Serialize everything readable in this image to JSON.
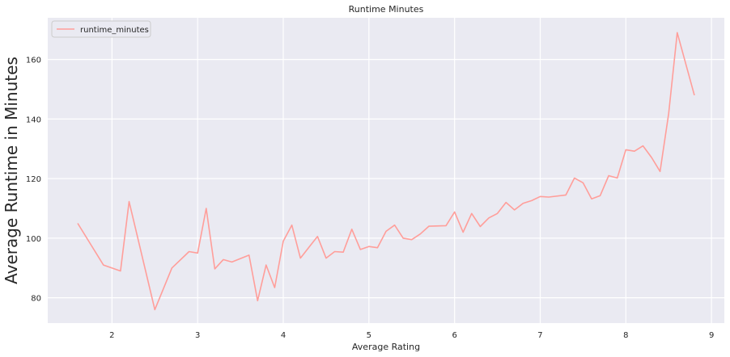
{
  "chart_data": {
    "type": "line",
    "title": "Runtime Minutes",
    "xlabel": "Average Rating",
    "ylabel": "Average Runtime in Minutes",
    "xlim": [
      1.25,
      9.15
    ],
    "ylim": [
      71.5,
      174
    ],
    "xticks": [
      2,
      3,
      4,
      5,
      6,
      7,
      8,
      9
    ],
    "yticks": [
      80,
      100,
      120,
      140,
      160
    ],
    "grid": true,
    "legend_position": "top-left",
    "colors": {
      "plot_bg": "#EAEAF2",
      "grid": "#FFFFFF",
      "line": "#FF9E9A"
    },
    "series": [
      {
        "name": "runtime_minutes",
        "x": [
          1.6,
          1.9,
          2.1,
          2.2,
          2.5,
          2.7,
          2.9,
          3.0,
          3.1,
          3.2,
          3.3,
          3.4,
          3.6,
          3.7,
          3.8,
          3.9,
          4.0,
          4.1,
          4.2,
          4.4,
          4.5,
          4.6,
          4.7,
          4.8,
          4.9,
          5.0,
          5.1,
          5.2,
          5.3,
          5.4,
          5.5,
          5.6,
          5.7,
          5.9,
          6.0,
          6.1,
          6.2,
          6.3,
          6.4,
          6.5,
          6.6,
          6.7,
          6.8,
          6.9,
          7.0,
          7.1,
          7.3,
          7.4,
          7.5,
          7.6,
          7.7,
          7.8,
          7.9,
          8.0,
          8.1,
          8.2,
          8.3,
          8.4,
          8.5,
          8.6,
          8.8
        ],
        "y": [
          105,
          91,
          89,
          112.3,
          76,
          90,
          95.5,
          95,
          110,
          89.7,
          92.8,
          92,
          94.3,
          79,
          91,
          83.4,
          99,
          104.4,
          93.3,
          100.6,
          93.3,
          95.5,
          95.3,
          103,
          96.2,
          97.2,
          96.8,
          102.3,
          104.4,
          100,
          99.5,
          101.4,
          104,
          104.2,
          108.8,
          102,
          108.3,
          103.9,
          106.8,
          108.3,
          112,
          109.5,
          111.7,
          112.6,
          114,
          113.8,
          114.5,
          120.2,
          118.6,
          113.2,
          114.3,
          121,
          120.2,
          129.7,
          129.2,
          131,
          127.1,
          122.4,
          141.8,
          169,
          148
        ]
      }
    ]
  }
}
